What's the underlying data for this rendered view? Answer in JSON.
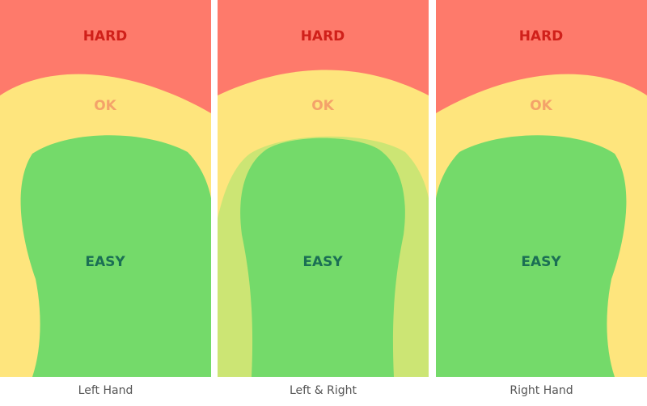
{
  "zones": {
    "hard": "HARD",
    "ok": "OK",
    "easy": "EASY"
  },
  "captions": {
    "left": "Left Hand",
    "both": "Left & Right",
    "right": "Right Hand"
  },
  "colors": {
    "hard": "#fe7a6b",
    "ok": "#fee57d",
    "easy": "#74da6a",
    "overlap": "#c9e574",
    "hard_text": "#d0201a",
    "ok_text": "#f4a36a",
    "easy_text": "#1b6f54",
    "caption_text": "#555555",
    "divider": "#ffffff"
  }
}
